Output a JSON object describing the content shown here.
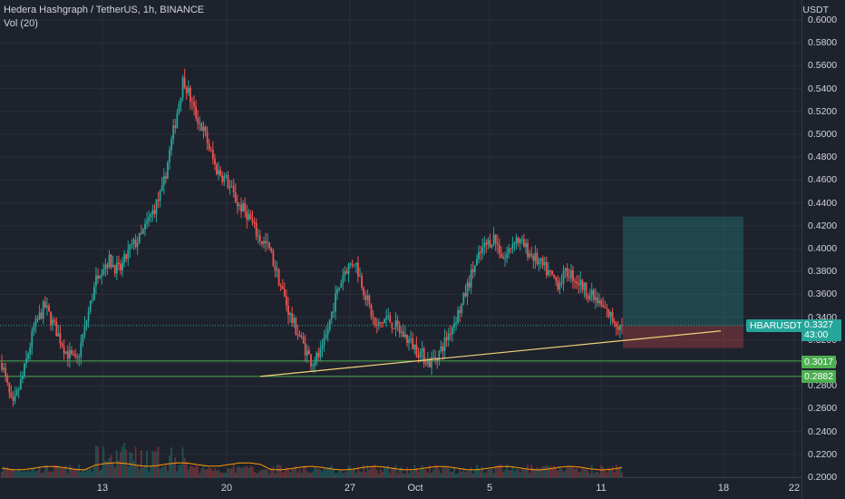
{
  "legend": {
    "title": "Hedera Hashgraph / TetherUS, 1h, BINANCE",
    "indicator": "Vol (20)"
  },
  "axis": {
    "unit": "USDT",
    "y_ticks": [
      "0.6000",
      "0.5800",
      "0.5600",
      "0.5400",
      "0.5200",
      "0.5000",
      "0.4800",
      "0.4600",
      "0.4400",
      "0.4200",
      "0.4000",
      "0.3800",
      "0.3600",
      "0.3400",
      "0.3200",
      "0.3000",
      "0.2800",
      "0.2600",
      "0.2400",
      "0.2200",
      "0.2000"
    ],
    "x_ticks": [
      "13",
      "20",
      "27",
      "Oct",
      "5",
      "11",
      "18",
      "22"
    ]
  },
  "price_tag": {
    "symbol": "HBARUSDT",
    "price": "0.3327",
    "countdown": "43:00"
  },
  "levels": [
    {
      "label": "0.3017",
      "value": 0.3017,
      "color": "#4caf50"
    },
    {
      "label": "0.2882",
      "value": 0.2882,
      "color": "#4caf50"
    }
  ],
  "colors": {
    "up": "#26a69a",
    "down": "#ef5350",
    "trendline": "#f0d37a",
    "volume_ma": "#ff9800"
  },
  "chart_data": {
    "type": "candlestick",
    "series": "HBAR/USDT 1h",
    "ylim": [
      0.2,
      0.6
    ],
    "close_path": [
      0.3,
      0.26,
      0.29,
      0.33,
      0.35,
      0.33,
      0.31,
      0.3,
      0.34,
      0.38,
      0.39,
      0.38,
      0.4,
      0.41,
      0.43,
      0.45,
      0.5,
      0.55,
      0.52,
      0.5,
      0.47,
      0.46,
      0.44,
      0.43,
      0.41,
      0.4,
      0.37,
      0.34,
      0.32,
      0.3,
      0.31,
      0.35,
      0.38,
      0.39,
      0.36,
      0.33,
      0.34,
      0.33,
      0.32,
      0.31,
      0.3,
      0.31,
      0.33,
      0.35,
      0.38,
      0.4,
      0.41,
      0.39,
      0.41,
      0.4,
      0.39,
      0.38,
      0.37,
      0.38,
      0.37,
      0.36,
      0.35,
      0.34,
      0.33
    ],
    "trendline": {
      "from": 0.2882,
      "to": 0.328
    },
    "position": {
      "entry": 0.3327,
      "target": 0.428,
      "stop": 0.313
    }
  }
}
